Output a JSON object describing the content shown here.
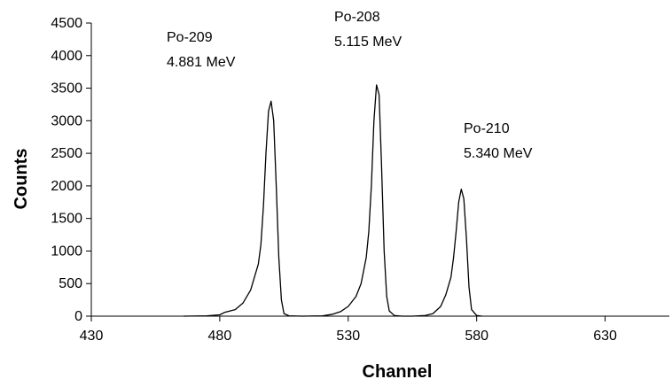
{
  "chart_data": {
    "type": "line",
    "title": "",
    "xlabel": "Channel",
    "ylabel": "Counts",
    "xlim": [
      430,
      655
    ],
    "ylim": [
      0,
      4500
    ],
    "x_ticks": [
      430,
      480,
      530,
      580,
      630
    ],
    "y_ticks": [
      0,
      500,
      1000,
      1500,
      2000,
      2500,
      3000,
      3500,
      4000,
      4500
    ],
    "grid": false,
    "legend": "none",
    "line_color": "#000000",
    "series": [
      {
        "points": [
          [
            466,
            0
          ],
          [
            475,
            5
          ],
          [
            480,
            20
          ],
          [
            482,
            60
          ],
          [
            484,
            80
          ],
          [
            486,
            100
          ],
          [
            489,
            200
          ],
          [
            492,
            400
          ],
          [
            495,
            800
          ],
          [
            496,
            1100
          ],
          [
            497,
            1700
          ],
          [
            498,
            2500
          ],
          [
            499,
            3150
          ],
          [
            500,
            3300
          ],
          [
            501,
            3000
          ],
          [
            502,
            2000
          ],
          [
            503,
            900
          ],
          [
            504,
            250
          ],
          [
            505,
            40
          ],
          [
            507,
            5
          ],
          [
            512,
            0
          ],
          [
            520,
            5
          ],
          [
            524,
            30
          ],
          [
            527,
            70
          ],
          [
            530,
            150
          ],
          [
            533,
            300
          ],
          [
            535,
            500
          ],
          [
            537,
            900
          ],
          [
            538,
            1300
          ],
          [
            539,
            2000
          ],
          [
            540,
            3000
          ],
          [
            541,
            3550
          ],
          [
            542,
            3400
          ],
          [
            543,
            2300
          ],
          [
            544,
            1000
          ],
          [
            545,
            300
          ],
          [
            546,
            80
          ],
          [
            548,
            10
          ],
          [
            551,
            0
          ],
          [
            555,
            0
          ],
          [
            560,
            10
          ],
          [
            563,
            40
          ],
          [
            566,
            150
          ],
          [
            568,
            330
          ],
          [
            570,
            600
          ],
          [
            571,
            900
          ],
          [
            572,
            1300
          ],
          [
            573,
            1750
          ],
          [
            574,
            1950
          ],
          [
            575,
            1800
          ],
          [
            576,
            1200
          ],
          [
            577,
            450
          ],
          [
            578,
            100
          ],
          [
            580,
            10
          ],
          [
            582,
            0
          ]
        ]
      }
    ],
    "annotations": [
      {
        "line1": "Po-209",
        "line2": "4.881 MeV"
      },
      {
        "line1": "Po-208",
        "line2": "5.115 MeV"
      },
      {
        "line1": "Po-210",
        "line2": "5.340 MeV"
      }
    ]
  }
}
